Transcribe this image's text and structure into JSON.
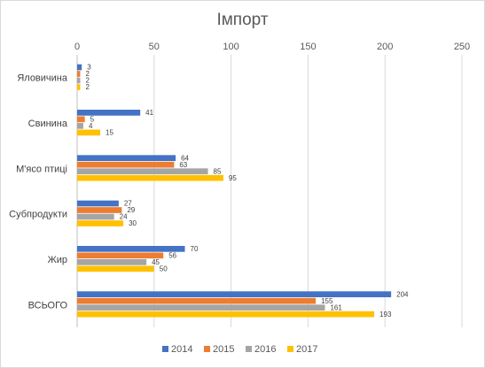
{
  "chart_data": {
    "type": "bar",
    "orientation": "horizontal",
    "title": "Імпорт",
    "categories": [
      "Яловичина",
      "Свинина",
      "М'ясо птиці",
      "Субпродукти",
      "Жир",
      "ВСЬОГО"
    ],
    "series": [
      {
        "name": "2014",
        "color": "#4472C4",
        "values": [
          3,
          41,
          64,
          27,
          70,
          204
        ]
      },
      {
        "name": "2015",
        "color": "#ED7D31",
        "values": [
          2,
          5,
          63,
          29,
          56,
          155
        ]
      },
      {
        "name": "2016",
        "color": "#A5A5A5",
        "values": [
          2,
          4,
          85,
          24,
          45,
          161
        ]
      },
      {
        "name": "2017",
        "color": "#FFC000",
        "values": [
          2,
          15,
          95,
          30,
          50,
          193
        ]
      }
    ],
    "xlim": [
      0,
      250
    ],
    "x_ticks": [
      0,
      50,
      100,
      150,
      200,
      250
    ],
    "x_axis_position": "top",
    "grid": true,
    "legend_position": "bottom",
    "data_labels": true
  }
}
